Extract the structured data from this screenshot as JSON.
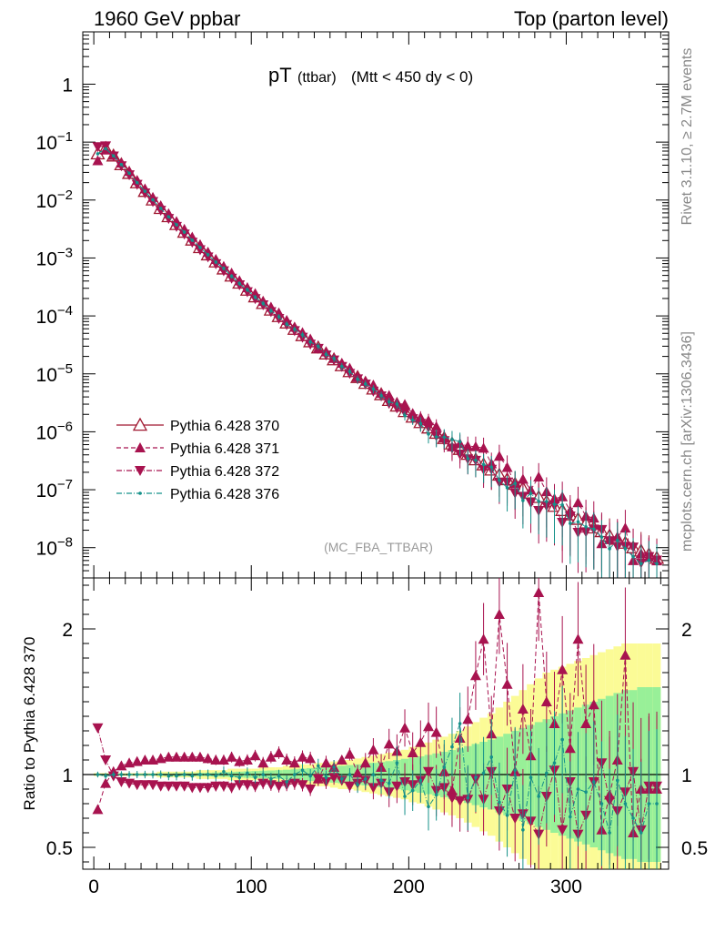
{
  "header": {
    "left": "1960 GeV ppbar",
    "right": "Top (parton level)"
  },
  "side_labels": {
    "rivet": "Rivet 3.1.10, ≥ 2.7M events",
    "mcplots": "mcplots.cern.ch [arXiv:1306.3436]"
  },
  "chart_data": {
    "type": "scatter",
    "title_main": "pT",
    "title_sub": "(ttbar)",
    "title_cut": "(Mtt < 450 dy < 0)",
    "watermark": "(MC_FBA_TTBAR)",
    "main": {
      "yscale": "log",
      "xlim": [
        -7,
        365
      ],
      "ylim": [
        3e-09,
        8
      ],
      "ytick_labels": [
        {
          "base": "1",
          "exp": ""
        },
        {
          "base": "10",
          "exp": "−1"
        },
        {
          "base": "10",
          "exp": "−2"
        },
        {
          "base": "10",
          "exp": "−3"
        },
        {
          "base": "10",
          "exp": "−4"
        },
        {
          "base": "10",
          "exp": "−5"
        },
        {
          "base": "10",
          "exp": "−6"
        },
        {
          "base": "10",
          "exp": "−7"
        },
        {
          "base": "10",
          "exp": "−8"
        }
      ],
      "ytick_values": [
        1,
        0.1,
        0.01,
        0.001,
        0.0001,
        1e-05,
        1e-06,
        1e-07,
        1e-08
      ],
      "series": [
        {
          "name": "Pythia 6.428 370",
          "color": "#a01830",
          "marker": "triangle-open",
          "line": "solid"
        },
        {
          "name": "Pythia 6.428 371",
          "color": "#a8134f",
          "marker": "triangle-up",
          "line": "dashed"
        },
        {
          "name": "Pythia 6.428 372",
          "color": "#a8134f",
          "marker": "triangle-down",
          "line": "dashdot"
        },
        {
          "name": "Pythia 6.428 376",
          "color": "#15918a",
          "marker": "dot",
          "line": "dashdot"
        }
      ],
      "x": [
        2.5,
        7.5,
        12.5,
        17.5,
        22.5,
        27.5,
        32.5,
        37.5,
        42.5,
        47.5,
        52.5,
        57.5,
        62.5,
        67.5,
        72.5,
        77.5,
        82.5,
        87.5,
        92.5,
        97.5,
        102.5,
        107.5,
        112.5,
        117.5,
        122.5,
        127.5,
        132.5,
        137.5,
        142.5,
        147.5,
        152.5,
        157.5,
        162.5,
        167.5,
        172.5,
        177.5,
        182.5,
        187.5,
        192.5,
        197.5,
        202.5,
        207.5,
        212.5,
        217.5,
        222.5,
        227.5,
        232.5,
        237.5,
        242.5,
        247.5,
        252.5,
        257.5,
        262.5,
        267.5,
        272.5,
        277.5,
        282.5,
        287.5,
        292.5,
        297.5,
        302.5,
        307.5,
        312.5,
        317.5,
        322.5,
        327.5,
        332.5,
        337.5,
        342.5,
        347.5,
        352.5,
        357.5
      ],
      "reference_values": [
        0.063,
        0.078,
        0.058,
        0.041,
        0.029,
        0.02,
        0.0142,
        0.0101,
        0.0072,
        0.0052,
        0.0038,
        0.0028,
        0.00205,
        0.00152,
        0.00114,
        0.00086,
        0.00065,
        0.00049,
        0.00037,
        0.00028,
        0.000215,
        0.000165,
        0.000127,
        9.8e-05,
        7.6e-05,
        5.9e-05,
        4.6e-05,
        3.6e-05,
        2.82e-05,
        2.22e-05,
        1.76e-05,
        1.39e-05,
        1.1e-05,
        8.7e-06,
        6.9e-06,
        5.5e-06,
        4.4e-06,
        3.5e-06,
        2.8e-06,
        2.25e-06,
        1.8e-06,
        1.45e-06,
        1.17e-06,
        9.5e-07,
        7.7e-07,
        6.2e-07,
        5e-07,
        4.1e-07,
        3.3e-07,
        2.7e-07,
        2.2e-07,
        1.8e-07,
        1.5e-07,
        1.25e-07,
        1.05e-07,
        8.8e-08,
        7.4e-08,
        6.2e-08,
        5.2e-08,
        4.4e-08,
        3.7e-08,
        3.1e-08,
        2.6e-08,
        2.2e-08,
        1.9e-08,
        1.6e-08,
        1.4e-08,
        1.2e-08,
        1e-08,
        8.8e-09,
        7.6e-09,
        6.6e-09
      ]
    },
    "ratio": {
      "ylabel": "Ratio to Pythia 6.428 370",
      "ylim": [
        0.35,
        2.35
      ],
      "ytick_labels": [
        "2",
        "1",
        "0.5"
      ],
      "ytick_values": [
        2,
        1,
        0.5
      ],
      "xticks": [
        0,
        100,
        200,
        300
      ],
      "series_371": [
        0.76,
        0.94,
        1.02,
        1.06,
        1.08,
        1.09,
        1.1,
        1.1,
        1.11,
        1.12,
        1.12,
        1.12,
        1.12,
        1.12,
        1.11,
        1.1,
        1.1,
        1.12,
        1.09,
        1.1,
        1.13,
        1.08,
        1.12,
        1.15,
        1.1,
        1.08,
        1.12,
        1.11,
        0.97,
        1.08,
        1.05,
        1.1,
        1.14,
        1.01,
        1.08,
        1.17,
        1.05,
        1.21,
        1.16,
        1.32,
        1.15,
        1.22,
        1.33,
        1.29,
        1.02,
        0.89,
        1.25,
        1.38,
        1.68,
        1.93,
        1.28,
        2.1,
        1.62,
        1.02,
        1.45,
        1.13,
        2.25,
        1.5,
        1.35,
        1.72,
        1.18,
        1.93,
        1.35,
        1.48,
        0.62,
        0.86,
        1.1,
        1.82,
        0.6,
        0.9,
        0.9,
        0.9
      ],
      "series_372": [
        1.32,
        1.1,
        0.99,
        0.95,
        0.94,
        0.93,
        0.93,
        0.93,
        0.92,
        0.92,
        0.92,
        0.92,
        0.91,
        0.91,
        0.91,
        0.92,
        0.92,
        0.91,
        0.93,
        0.93,
        0.92,
        0.94,
        0.93,
        0.92,
        0.93,
        0.94,
        0.93,
        0.9,
        0.97,
        0.95,
        0.98,
        0.96,
        0.92,
        0.94,
        0.96,
        0.91,
        0.94,
        0.88,
        0.92,
        0.95,
        0.93,
        0.96,
        1.02,
        0.89,
        0.91,
        0.84,
        0.82,
        0.83,
        0.97,
        0.83,
        1.02,
        0.75,
        0.9,
        0.7,
        0.73,
        0.68,
        0.59,
        0.85,
        1.03,
        0.62,
        0.95,
        0.59,
        0.72,
        0.95,
        1.08,
        0.82,
        0.75,
        0.88,
        1.02,
        0.62,
        0.92,
        0.92
      ],
      "series_376": [
        1.0,
        0.99,
        1.0,
        1.0,
        1.0,
        1.0,
        1.0,
        1.0,
        1.0,
        0.99,
        0.99,
        1.0,
        0.99,
        1.0,
        1.0,
        0.99,
        1.02,
        0.99,
        0.98,
        1.01,
        0.98,
        1.0,
        0.97,
        0.99,
        0.95,
        1.0,
        1.03,
        0.99,
        1.06,
        0.98,
        1.05,
        0.97,
        1.0,
        0.93,
        0.97,
        1.0,
        0.96,
        0.94,
        1.08,
        0.85,
        0.89,
        0.96,
        0.78,
        0.86,
        1.05,
        1.19,
        1.35,
        0.84,
        0.98,
        1.01,
        1.12,
        0.81,
        0.72,
        1.03,
        0.62,
        0.98,
        0.85,
        1.01,
        1.08,
        1.24,
        0.71,
        0.9,
        0.88,
        0.95,
        0.8,
        0.6,
        0.96,
        0.8,
        0.7,
        0.6,
        0.8,
        0.8
      ],
      "band_yellow_halfwidth": [
        0.01,
        0.01,
        0.01,
        0.01,
        0.01,
        0.01,
        0.01,
        0.01,
        0.02,
        0.02,
        0.02,
        0.02,
        0.02,
        0.03,
        0.03,
        0.03,
        0.03,
        0.04,
        0.04,
        0.04,
        0.04,
        0.05,
        0.05,
        0.05,
        0.06,
        0.06,
        0.07,
        0.07,
        0.08,
        0.08,
        0.09,
        0.1,
        0.1,
        0.11,
        0.12,
        0.13,
        0.14,
        0.15,
        0.16,
        0.17,
        0.19,
        0.2,
        0.22,
        0.24,
        0.26,
        0.28,
        0.3,
        0.33,
        0.36,
        0.39,
        0.42,
        0.46,
        0.5,
        0.54,
        0.58,
        0.62,
        0.66,
        0.7,
        0.72,
        0.74,
        0.76,
        0.78,
        0.8,
        0.82,
        0.84,
        0.86,
        0.88,
        0.9,
        0.9,
        0.9,
        0.9,
        0.9
      ],
      "band_green_halfwidth": [
        0.005,
        0.005,
        0.005,
        0.005,
        0.005,
        0.005,
        0.005,
        0.006,
        0.008,
        0.008,
        0.01,
        0.01,
        0.01,
        0.012,
        0.012,
        0.014,
        0.016,
        0.018,
        0.02,
        0.022,
        0.024,
        0.026,
        0.028,
        0.03,
        0.033,
        0.036,
        0.04,
        0.044,
        0.048,
        0.052,
        0.056,
        0.06,
        0.065,
        0.07,
        0.075,
        0.08,
        0.086,
        0.092,
        0.1,
        0.108,
        0.116,
        0.125,
        0.135,
        0.145,
        0.156,
        0.168,
        0.18,
        0.195,
        0.21,
        0.225,
        0.24,
        0.26,
        0.28,
        0.3,
        0.32,
        0.34,
        0.36,
        0.38,
        0.4,
        0.42,
        0.44,
        0.46,
        0.48,
        0.5,
        0.52,
        0.54,
        0.56,
        0.58,
        0.58,
        0.6,
        0.6,
        0.6
      ]
    }
  }
}
